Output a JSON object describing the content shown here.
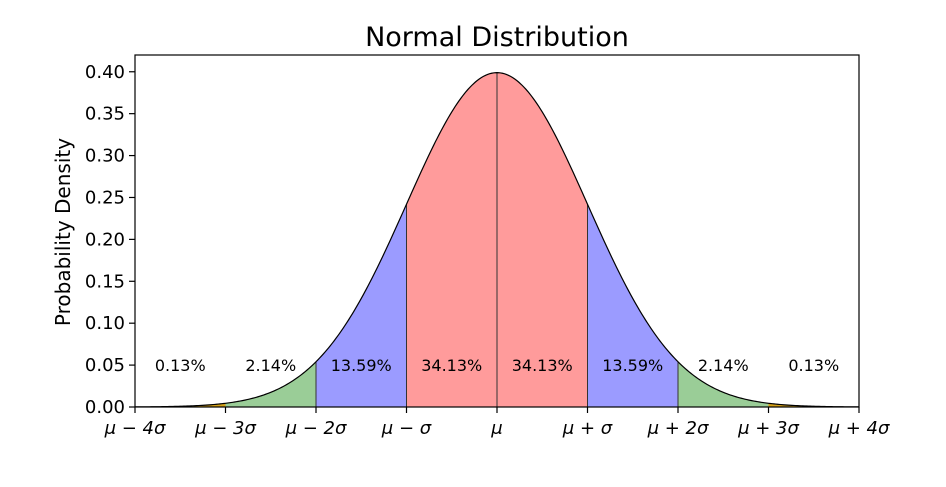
{
  "chart_data": {
    "type": "area",
    "title": "Normal Distribution",
    "xlabel": "",
    "ylabel": "Probability Density",
    "xlim": [
      -4.0,
      4.0
    ],
    "ylim": [
      0.0,
      0.42
    ],
    "grid": false,
    "mu": 0,
    "sigma": 1,
    "y_ticks": [
      {
        "value": 0.0,
        "label": "0.00"
      },
      {
        "value": 0.05,
        "label": "0.05"
      },
      {
        "value": 0.1,
        "label": "0.10"
      },
      {
        "value": 0.15,
        "label": "0.15"
      },
      {
        "value": 0.2,
        "label": "0.20"
      },
      {
        "value": 0.25,
        "label": "0.25"
      },
      {
        "value": 0.3,
        "label": "0.30"
      },
      {
        "value": 0.35,
        "label": "0.35"
      },
      {
        "value": 0.4,
        "label": "0.40"
      }
    ],
    "x_ticks": [
      {
        "value": -4,
        "label": "μ − 4σ"
      },
      {
        "value": -3,
        "label": "μ − 3σ"
      },
      {
        "value": -2,
        "label": "μ − 2σ"
      },
      {
        "value": -1,
        "label": "μ − σ"
      },
      {
        "value": 0,
        "label": "μ"
      },
      {
        "value": 1,
        "label": "μ + σ"
      },
      {
        "value": 2,
        "label": "μ + 2σ"
      },
      {
        "value": 3,
        "label": "μ + 3σ"
      },
      {
        "value": 4,
        "label": "μ + 4σ"
      }
    ],
    "regions": [
      {
        "from": -4,
        "to": -3,
        "percent": "0.13%",
        "color": "#d4a017",
        "label_y": 0.05
      },
      {
        "from": -3,
        "to": -2,
        "percent": "2.14%",
        "color": "#9acd97",
        "label_y": 0.05
      },
      {
        "from": -2,
        "to": -1,
        "percent": "13.59%",
        "color": "#9b9bff",
        "label_y": 0.05
      },
      {
        "from": -1,
        "to": 0,
        "percent": "34.13%",
        "color": "#ff9b9b",
        "label_y": 0.05
      },
      {
        "from": 0,
        "to": 1,
        "percent": "34.13%",
        "color": "#ff9b9b",
        "label_y": 0.05
      },
      {
        "from": 1,
        "to": 2,
        "percent": "13.59%",
        "color": "#9b9bff",
        "label_y": 0.05
      },
      {
        "from": 2,
        "to": 3,
        "percent": "2.14%",
        "color": "#9acd97",
        "label_y": 0.05
      },
      {
        "from": 3,
        "to": 4,
        "percent": "0.13%",
        "color": "#d4a017",
        "label_y": 0.05
      }
    ],
    "boundaries": [
      -2,
      -1,
      0,
      1,
      2
    ],
    "curve_color": "#000000"
  }
}
